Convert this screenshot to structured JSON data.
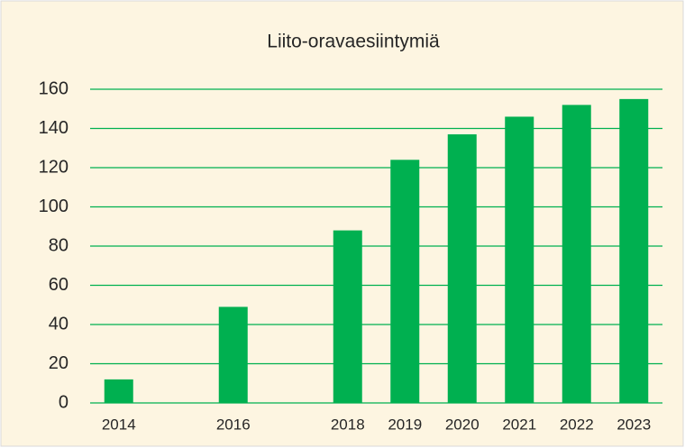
{
  "chart_data": {
    "type": "bar",
    "title": "Liito-oravaesiintymiä",
    "categories": [
      "2014",
      null,
      "2016",
      null,
      "2018",
      "2019",
      "2020",
      "2021",
      "2022",
      "2023"
    ],
    "values": [
      12,
      null,
      49,
      null,
      88,
      124,
      137,
      146,
      152,
      155
    ],
    "color": "#00b050",
    "ylim": [
      0,
      160
    ],
    "yticks": [
      0,
      20,
      40,
      60,
      80,
      100,
      120,
      140,
      160
    ],
    "grid": true,
    "grid_color": "#00b050"
  }
}
